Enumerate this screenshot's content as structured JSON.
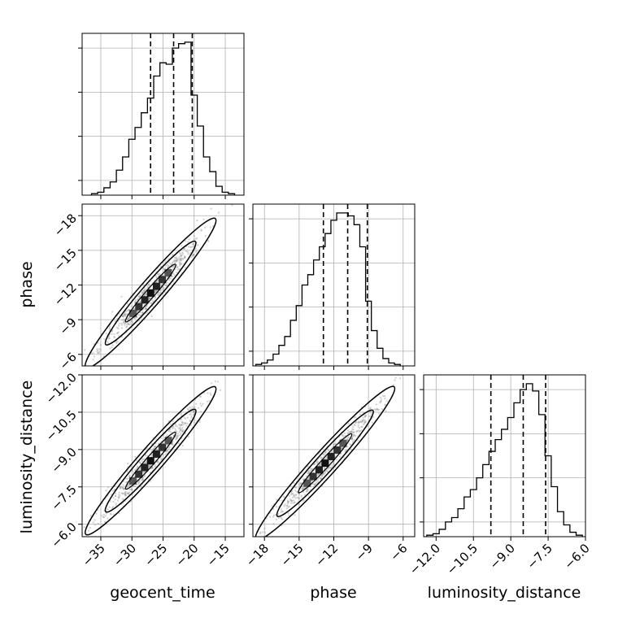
{
  "chart_data": {
    "type": "corner",
    "parameters": [
      {
        "name": "geocent_time",
        "range": [
          -38,
          -12
        ],
        "ticks": [
          -35,
          -30,
          -25,
          -20,
          -15
        ],
        "quantiles": [
          -27.0,
          -23.3,
          -20.3
        ]
      },
      {
        "name": "phase",
        "range": [
          -19,
          -5
        ],
        "ticks": [
          -18,
          -15,
          -12,
          -9,
          -6
        ],
        "quantiles": [
          -12.9,
          -10.8,
          -9.1
        ]
      },
      {
        "name": "luminosity_distance",
        "range": [
          -12.5,
          -6.0
        ],
        "ticks": [
          -12.0,
          -10.5,
          -9.0,
          -7.5,
          -6.0
        ],
        "quantiles": [
          -9.8,
          -8.5,
          -7.6
        ]
      }
    ],
    "x_tick_labels": [
      [
        "−35",
        "−30",
        "−25",
        "−20",
        "−15"
      ],
      [
        "−18",
        "−15",
        "−12",
        "−9",
        "−6"
      ],
      [
        "−12.0",
        "−10.5",
        "−9.0",
        "−7.5",
        "−6.0"
      ]
    ],
    "y_tick_labels": {
      "phase": [
        "−6",
        "−9",
        "−12",
        "−15",
        "−18"
      ],
      "luminosity_distance": [
        "−6.0",
        "−7.5",
        "−9.0",
        "−10.5",
        "−12.0"
      ]
    },
    "histograms": {
      "geocent_time": [
        {
          "x": -36,
          "count": 0.01
        },
        {
          "x": -35,
          "count": 0.02
        },
        {
          "x": -34,
          "count": 0.05
        },
        {
          "x": -33,
          "count": 0.09
        },
        {
          "x": -32,
          "count": 0.17
        },
        {
          "x": -31,
          "count": 0.26
        },
        {
          "x": -30,
          "count": 0.38
        },
        {
          "x": -29,
          "count": 0.46
        },
        {
          "x": -28,
          "count": 0.56
        },
        {
          "x": -27,
          "count": 0.66
        },
        {
          "x": -26,
          "count": 0.81
        },
        {
          "x": -25,
          "count": 0.9
        },
        {
          "x": -24,
          "count": 0.89
        },
        {
          "x": -23,
          "count": 1.0
        },
        {
          "x": -22,
          "count": 1.03
        },
        {
          "x": -21,
          "count": 1.04
        },
        {
          "x": -20,
          "count": 0.68
        },
        {
          "x": -19,
          "count": 0.47
        },
        {
          "x": -18,
          "count": 0.26
        },
        {
          "x": -17,
          "count": 0.16
        },
        {
          "x": -16,
          "count": 0.06
        },
        {
          "x": -15,
          "count": 0.02
        },
        {
          "x": -14,
          "count": 0.01
        }
      ],
      "phase": [
        {
          "x": -18.5,
          "count": 0.01
        },
        {
          "x": -18.0,
          "count": 0.02
        },
        {
          "x": -17.5,
          "count": 0.04
        },
        {
          "x": -17.0,
          "count": 0.08
        },
        {
          "x": -16.5,
          "count": 0.14
        },
        {
          "x": -16.0,
          "count": 0.2
        },
        {
          "x": -15.5,
          "count": 0.31
        },
        {
          "x": -15.0,
          "count": 0.41
        },
        {
          "x": -14.5,
          "count": 0.55
        },
        {
          "x": -14.0,
          "count": 0.62
        },
        {
          "x": -13.5,
          "count": 0.72
        },
        {
          "x": -13.0,
          "count": 0.81
        },
        {
          "x": -12.5,
          "count": 0.9
        },
        {
          "x": -12.0,
          "count": 0.99
        },
        {
          "x": -11.5,
          "count": 1.04
        },
        {
          "x": -11.0,
          "count": 1.04
        },
        {
          "x": -10.5,
          "count": 1.02
        },
        {
          "x": -10.0,
          "count": 0.96
        },
        {
          "x": -9.5,
          "count": 0.81
        },
        {
          "x": -9.0,
          "count": 0.44
        },
        {
          "x": -8.5,
          "count": 0.24
        },
        {
          "x": -8.0,
          "count": 0.12
        },
        {
          "x": -7.5,
          "count": 0.05
        },
        {
          "x": -7.0,
          "count": 0.02
        },
        {
          "x": -6.5,
          "count": 0.01
        }
      ],
      "luminosity_distance": [
        {
          "x": -12.25,
          "count": 0.01
        },
        {
          "x": -12.0,
          "count": 0.02
        },
        {
          "x": -11.75,
          "count": 0.05
        },
        {
          "x": -11.5,
          "count": 0.1
        },
        {
          "x": -11.25,
          "count": 0.13
        },
        {
          "x": -11.0,
          "count": 0.19
        },
        {
          "x": -10.75,
          "count": 0.27
        },
        {
          "x": -10.5,
          "count": 0.32
        },
        {
          "x": -10.25,
          "count": 0.4
        },
        {
          "x": -10.0,
          "count": 0.49
        },
        {
          "x": -9.75,
          "count": 0.58
        },
        {
          "x": -9.5,
          "count": 0.66
        },
        {
          "x": -9.25,
          "count": 0.73
        },
        {
          "x": -9.0,
          "count": 0.81
        },
        {
          "x": -8.75,
          "count": 0.91
        },
        {
          "x": -8.5,
          "count": 1.0
        },
        {
          "x": -8.25,
          "count": 1.04
        },
        {
          "x": -8.0,
          "count": 0.99
        },
        {
          "x": -7.75,
          "count": 0.83
        },
        {
          "x": -7.5,
          "count": 0.55
        },
        {
          "x": -7.25,
          "count": 0.34
        },
        {
          "x": -7.0,
          "count": 0.17
        },
        {
          "x": -6.75,
          "count": 0.08
        },
        {
          "x": -6.5,
          "count": 0.03
        },
        {
          "x": -6.25,
          "count": 0.01
        }
      ]
    },
    "joint_trends": [
      {
        "x_param": "geocent_time",
        "y_param": "phase",
        "points": [
          [
            -37,
            -18.9
          ],
          [
            -17,
            -6.5
          ]
        ]
      },
      {
        "x_param": "geocent_time",
        "y_param": "luminosity_distance",
        "points": [
          [
            -37,
            -12.3
          ],
          [
            -17,
            -6.6
          ]
        ]
      },
      {
        "x_param": "phase",
        "y_param": "luminosity_distance",
        "points": [
          [
            -18.5,
            -12.5
          ],
          [
            -7,
            -6.6
          ]
        ]
      }
    ],
    "density_levels": 3,
    "scatter_color": "#888888",
    "line_color": "#000000",
    "grid": true,
    "quantile_style": "dashed"
  }
}
